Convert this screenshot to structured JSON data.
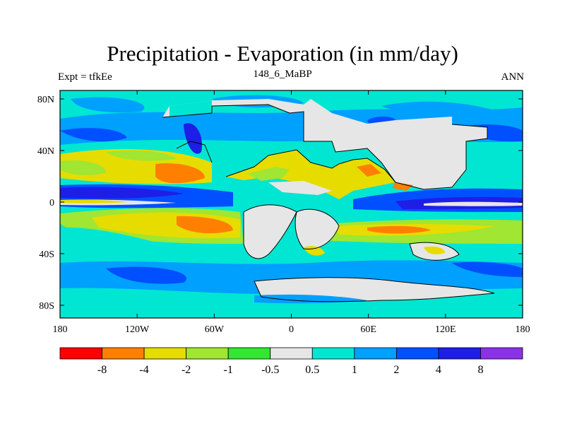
{
  "title": "Precipitation - Evaporation (in mm/day)",
  "left_string": "Expt = tfkEe",
  "center_string": "148_6_MaBP",
  "right_string": "ANN",
  "map": {
    "lon_ticks": [
      "180",
      "120W",
      "60W",
      "0",
      "60E",
      "120E",
      "180"
    ],
    "lat_ticks": [
      "80N",
      "40N",
      "0",
      "40S",
      "80S"
    ]
  },
  "colorbar": {
    "colors": [
      "#ff0000",
      "#ff8000",
      "#e6dc00",
      "#a0e632",
      "#32e632",
      "#e6e6e6",
      "#00e6d2",
      "#00a0ff",
      "#0050ff",
      "#1e1ee6",
      "#8c32e6"
    ],
    "labels": [
      "-8",
      "-4",
      "-2",
      "-1",
      "-0.5",
      "0.5",
      "1",
      "2",
      "4",
      "8"
    ]
  }
}
